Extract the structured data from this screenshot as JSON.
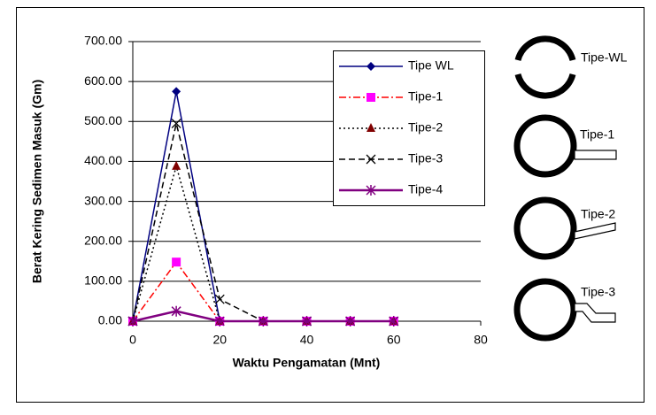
{
  "chart_data": {
    "type": "line",
    "x_label": "Waktu Pengamatan (Mnt)",
    "y_label": "Berat Kering Sedimen Masuk (Gm)",
    "x": [
      0,
      10,
      20,
      30,
      40,
      50,
      60
    ],
    "series": [
      {
        "name": "Tipe WL",
        "color": "#000080",
        "marker": "diamond",
        "marker_color": "#000080",
        "dash": "solid",
        "values": [
          0,
          575,
          0,
          0,
          0,
          0,
          0
        ]
      },
      {
        "name": "Tipe-1",
        "color": "#ff0000",
        "marker": "square",
        "marker_color": "#ff00ff",
        "dash": "dashdot",
        "values": [
          0,
          148,
          0,
          0,
          0,
          0,
          0
        ]
      },
      {
        "name": "Tipe-2",
        "color": "#000000",
        "marker": "triangle",
        "marker_color": "#800000",
        "dash": "dotted",
        "values": [
          0,
          388,
          0,
          0,
          0,
          0,
          0
        ]
      },
      {
        "name": "Tipe-3",
        "color": "#000000",
        "marker": "x",
        "marker_color": "#000000",
        "dash": "dashed",
        "values": [
          0,
          495,
          55,
          0,
          0,
          0,
          0
        ]
      },
      {
        "name": "Tipe-4",
        "color": "#800080",
        "marker": "star",
        "marker_color": "#800080",
        "dash": "solid",
        "values": [
          0,
          25,
          0,
          0,
          0,
          0,
          0
        ]
      }
    ],
    "xlim": [
      0,
      80
    ],
    "xticks": [
      0,
      20,
      40,
      60,
      80
    ],
    "ylim": [
      0,
      700
    ],
    "yticks": [
      {
        "value": 0,
        "label": "0.00"
      },
      {
        "value": 100,
        "label": "100.00"
      },
      {
        "value": 200,
        "label": "200.00"
      },
      {
        "value": 300,
        "label": "300.00"
      },
      {
        "value": 400,
        "label": "400.00"
      },
      {
        "value": 500,
        "label": "500.00"
      },
      {
        "value": 600,
        "label": "600.00"
      },
      {
        "value": 700,
        "label": "700.00"
      }
    ],
    "grid": true,
    "legend": "upper right"
  },
  "diagram": {
    "labels": [
      "Tipe-WL",
      "Tipe-1",
      "Tipe-2",
      "Tipe-3"
    ]
  }
}
